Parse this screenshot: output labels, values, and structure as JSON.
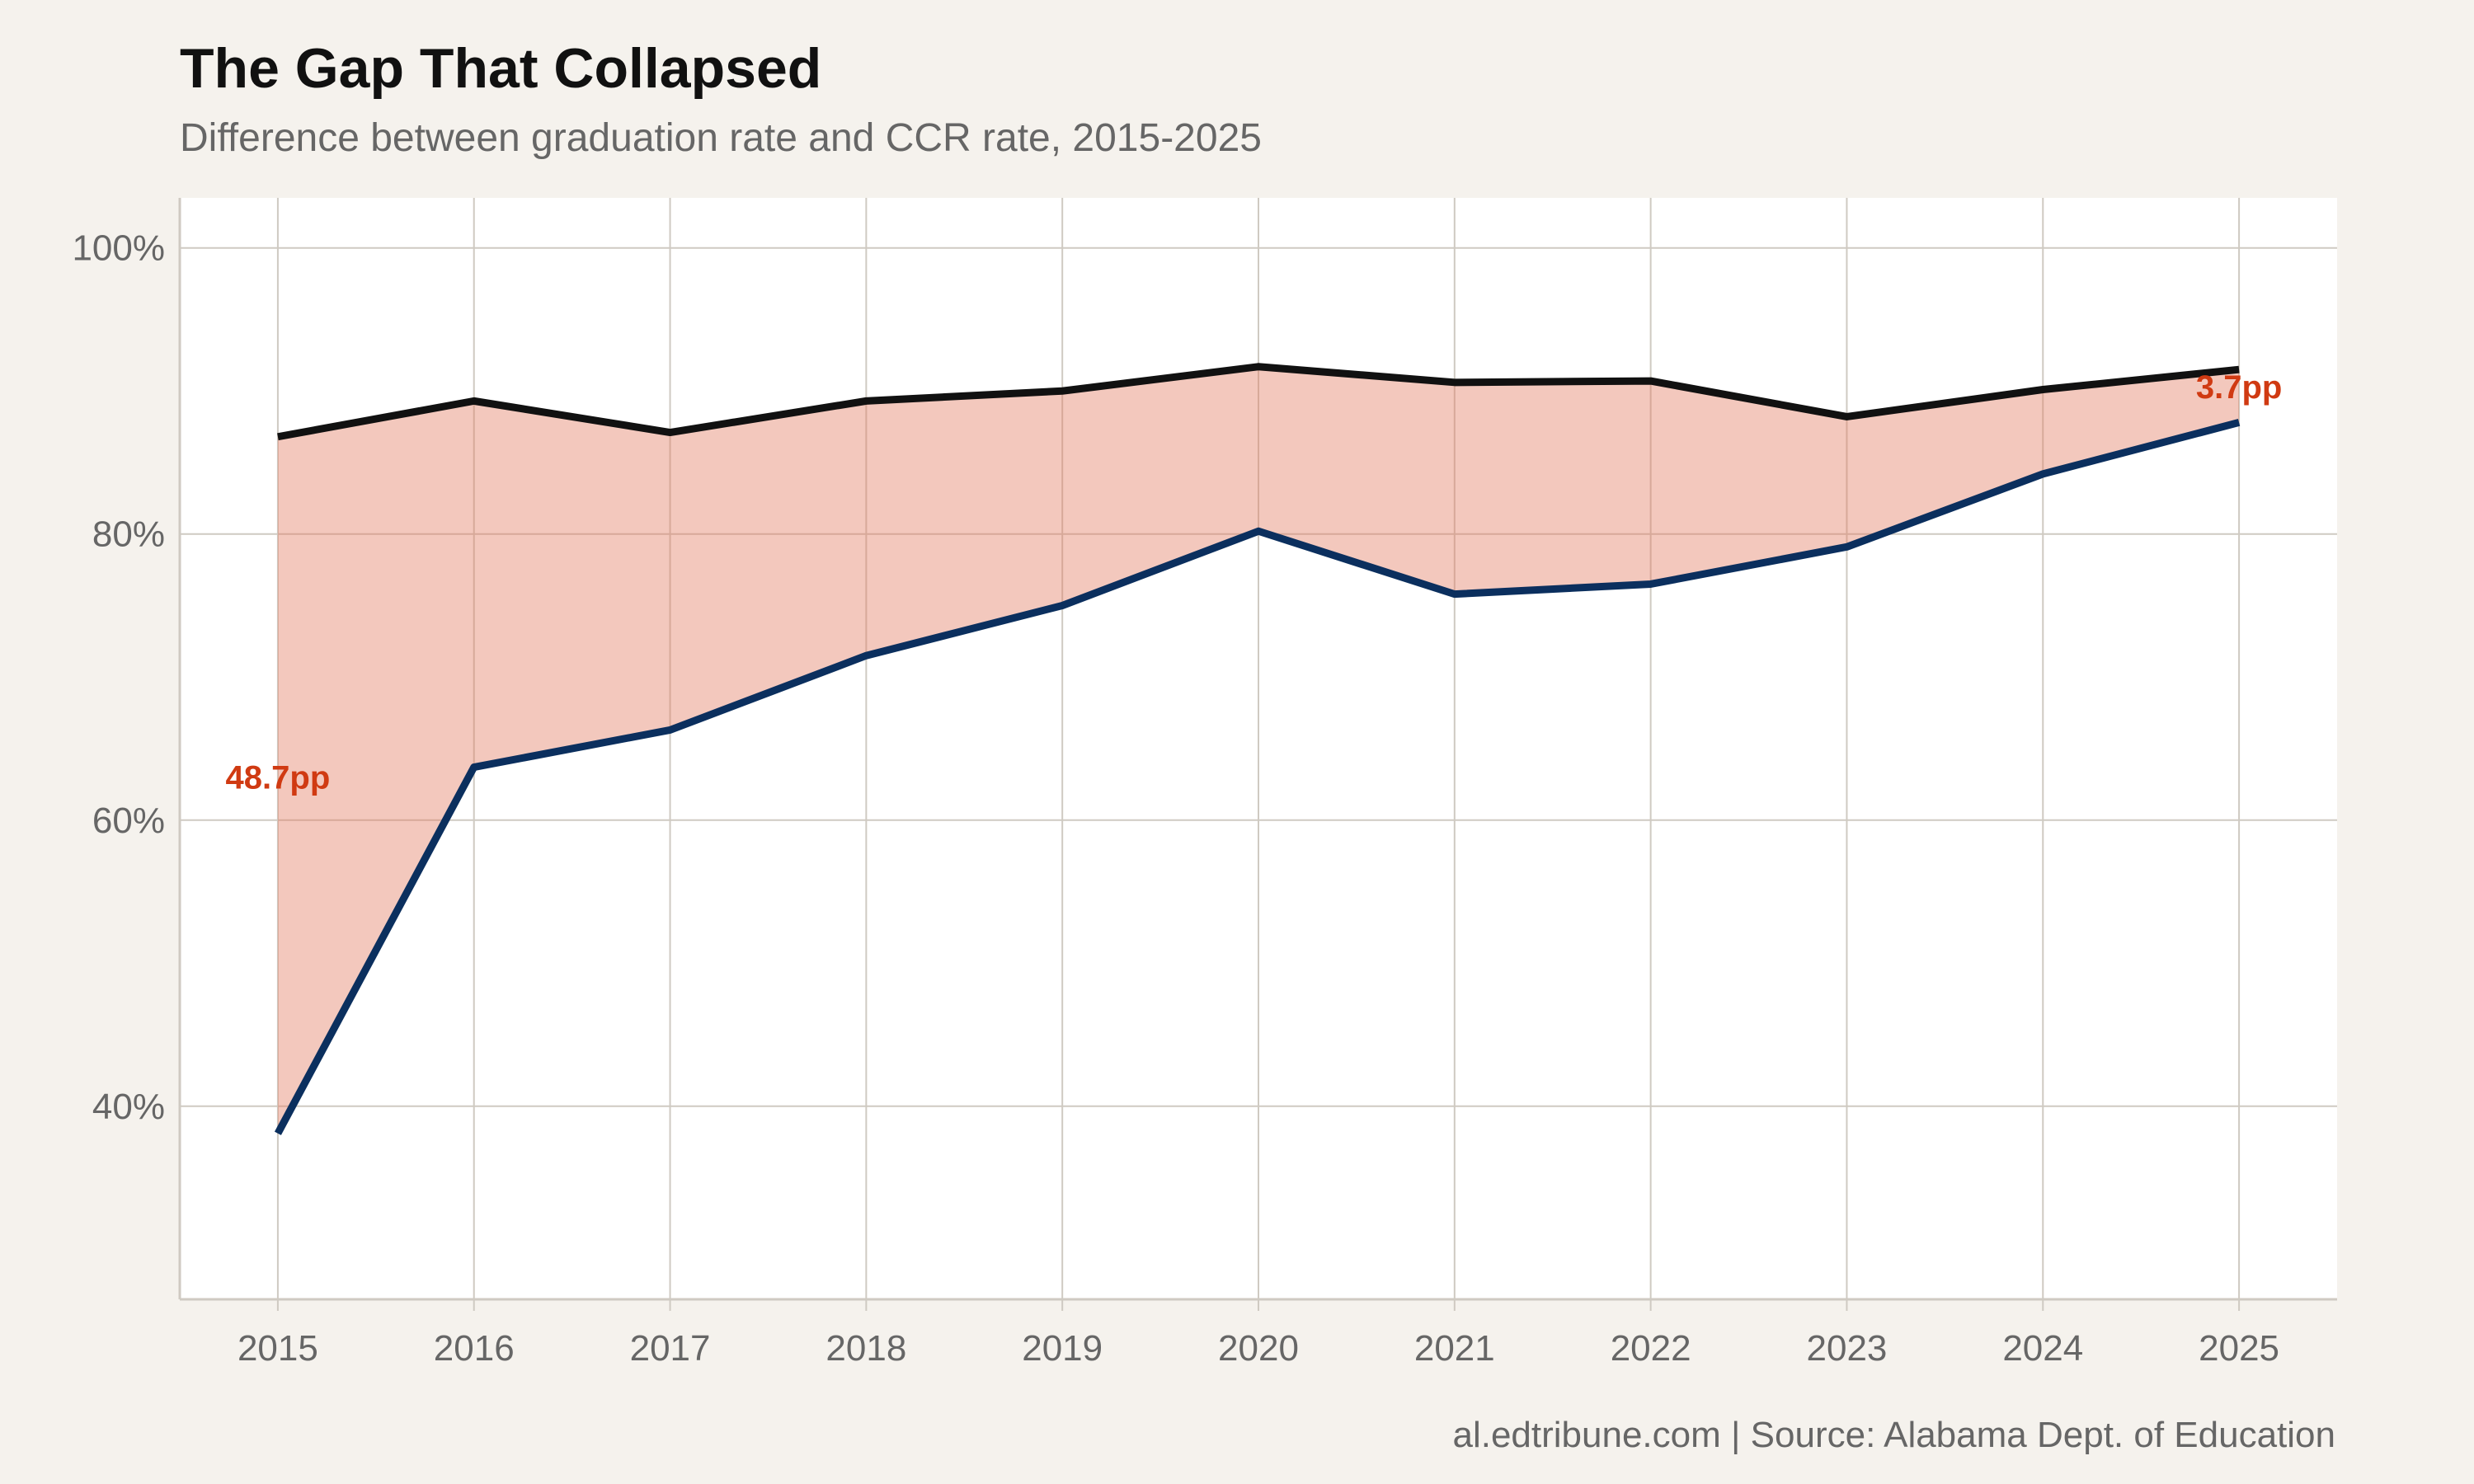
{
  "title": "The Gap That Collapsed",
  "subtitle": "Difference between graduation rate and CCR rate, 2015-2025",
  "caption": "al.edtribune.com | Source: Alabama Dept. of Education",
  "colors": {
    "background": "#f5f2ed",
    "panel": "#ffffff",
    "grid": "#cfcac2",
    "graduation_line": "#111111",
    "ccr_line": "#0b2f5e",
    "gap_fill": "#e27b62",
    "gap_label": "#d03a12"
  },
  "chart_data": {
    "type": "area",
    "x": [
      2015,
      2016,
      2017,
      2018,
      2019,
      2020,
      2021,
      2022,
      2023,
      2024,
      2025
    ],
    "series": [
      {
        "key": "graduation",
        "values": [
          86.8,
          89.3,
          87.1,
          89.3,
          90.0,
          91.7,
          90.6,
          90.7,
          88.2,
          90.1,
          91.5
        ]
      },
      {
        "key": "ccr",
        "values": [
          38.1,
          63.7,
          66.3,
          71.5,
          75.0,
          80.2,
          75.8,
          76.5,
          79.1,
          84.2,
          87.8
        ]
      }
    ],
    "x_ticks": [
      "2015",
      "2016",
      "2017",
      "2018",
      "2019",
      "2020",
      "2021",
      "2022",
      "2023",
      "2024",
      "2025"
    ],
    "y_ticks": [
      "40%",
      "60%",
      "80%",
      "100%"
    ],
    "y_tick_values": [
      40,
      60,
      80,
      100
    ],
    "ylim": [
      26.5,
      103.5
    ],
    "xlim": [
      2014.5,
      2025.5
    ],
    "grid": true,
    "annotations": [
      {
        "text": "48.7pp",
        "x": 2015,
        "y": 62.2,
        "anchor": "middle"
      },
      {
        "text": "3.7pp",
        "x": 2025,
        "y": 89.5,
        "anchor": "middle"
      }
    ],
    "title": "The Gap That Collapsed",
    "subtitle": "Difference between graduation rate and CCR rate, 2015-2025"
  }
}
